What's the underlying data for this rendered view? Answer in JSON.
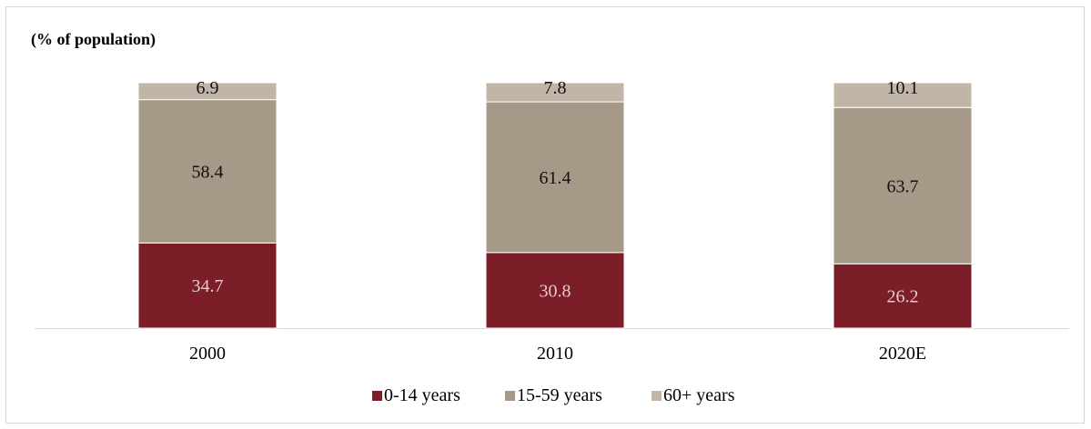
{
  "chart_data": {
    "type": "bar",
    "stacked": true,
    "title": "(% of population)",
    "categories": [
      "2000",
      "2010",
      "2020E"
    ],
    "series": [
      {
        "name": "0-14 years",
        "values": [
          34.7,
          30.8,
          26.2
        ],
        "color": "#7b1e28",
        "label_color": "#e6c9cc"
      },
      {
        "name": "15-59 years",
        "values": [
          58.4,
          61.4,
          63.7
        ],
        "color": "#a69987",
        "label_color": "#111111"
      },
      {
        "name": "60+ years",
        "values": [
          6.9,
          7.8,
          10.1
        ],
        "color": "#c0b5a7",
        "label_color": "#111111"
      }
    ],
    "ylim": [
      0,
      100
    ],
    "grid": false,
    "legend": "bottom"
  }
}
